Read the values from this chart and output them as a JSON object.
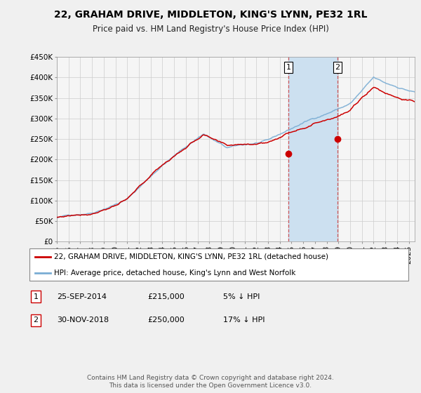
{
  "title": "22, GRAHAM DRIVE, MIDDLETON, KING'S LYNN, PE32 1RL",
  "subtitle": "Price paid vs. HM Land Registry's House Price Index (HPI)",
  "legend_line1": "22, GRAHAM DRIVE, MIDDLETON, KING'S LYNN, PE32 1RL (detached house)",
  "legend_line2": "HPI: Average price, detached house, King's Lynn and West Norfolk",
  "sale1_label": "1",
  "sale1_date": "25-SEP-2014",
  "sale1_price": "£215,000",
  "sale1_hpi": "5% ↓ HPI",
  "sale2_label": "2",
  "sale2_date": "30-NOV-2018",
  "sale2_price": "£250,000",
  "sale2_hpi": "17% ↓ HPI",
  "footer": "Contains HM Land Registry data © Crown copyright and database right 2024.\nThis data is licensed under the Open Government Licence v3.0.",
  "ylim": [
    0,
    450000
  ],
  "yticks": [
    0,
    50000,
    100000,
    150000,
    200000,
    250000,
    300000,
    350000,
    400000,
    450000
  ],
  "line_color_red": "#cc0000",
  "line_color_blue": "#7aadd4",
  "shade_color": "#cce0f0",
  "sale_marker_color": "#cc0000",
  "vline_color": "#cc3333",
  "background_color": "#f0f0f0",
  "chart_bg_color": "#f5f5f5",
  "grid_color": "#cccccc",
  "sale1_x_year": 2014.73,
  "sale2_x_year": 2018.92,
  "xmin": 1995.0,
  "xmax": 2025.5
}
